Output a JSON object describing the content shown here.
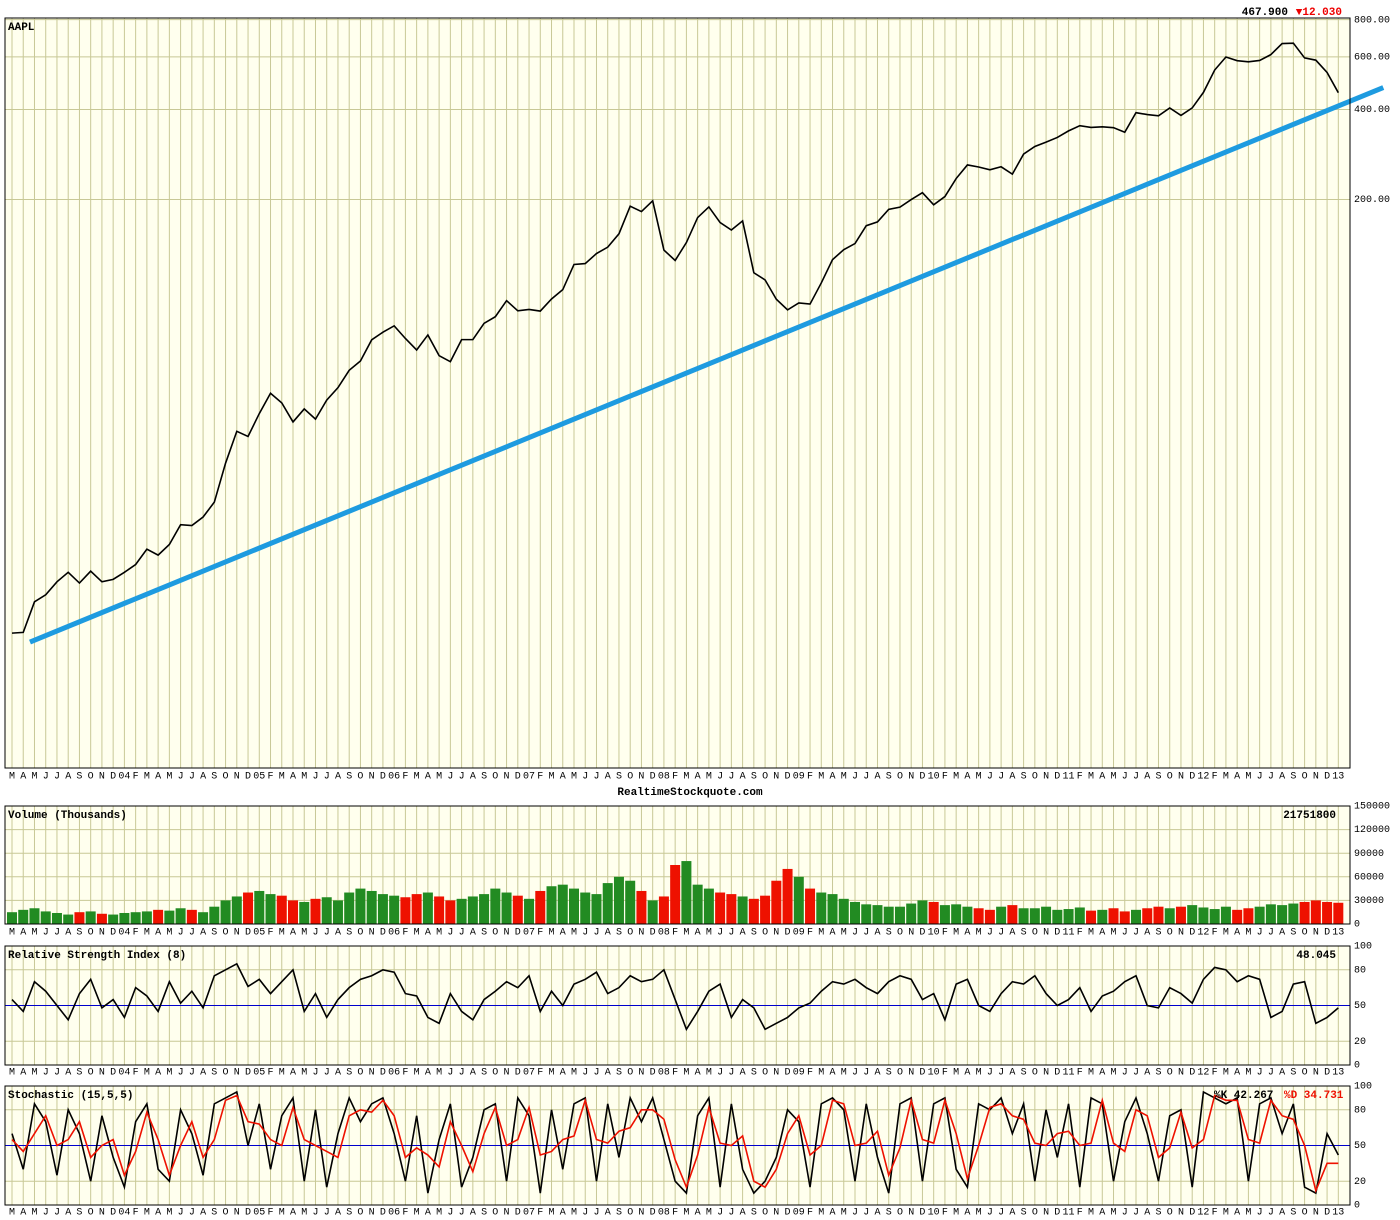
{
  "chart_data": [
    {
      "type": "line",
      "title": "AAPL",
      "last_label": "467.900",
      "change_label": "▼12.030",
      "change_color": "#ee0000",
      "footer": "RealtimeStockquote.com",
      "categories": [
        "M",
        "A",
        "M",
        "J",
        "J",
        "A",
        "S",
        "O",
        "N",
        "D",
        "04",
        "F",
        "M",
        "A",
        "M",
        "J",
        "J",
        "A",
        "S",
        "O",
        "N",
        "D",
        "05",
        "F",
        "M",
        "A",
        "M",
        "J",
        "J",
        "A",
        "S",
        "O",
        "N",
        "D",
        "06",
        "F",
        "M",
        "A",
        "M",
        "J",
        "J",
        "A",
        "S",
        "O",
        "N",
        "D",
        "07",
        "F",
        "M",
        "A",
        "M",
        "J",
        "J",
        "A",
        "S",
        "O",
        "N",
        "D",
        "08",
        "F",
        "M",
        "A",
        "M",
        "J",
        "J",
        "A",
        "S",
        "O",
        "N",
        "D",
        "09",
        "F",
        "M",
        "A",
        "M",
        "J",
        "J",
        "A",
        "S",
        "O",
        "N",
        "D",
        "10",
        "F",
        "M",
        "A",
        "M",
        "J",
        "J",
        "A",
        "S",
        "O",
        "N",
        "D",
        "11",
        "F",
        "M",
        "A",
        "M",
        "J",
        "J",
        "A",
        "S",
        "O",
        "N",
        "D",
        "12",
        "F",
        "M",
        "A",
        "M",
        "J",
        "J",
        "A",
        "S",
        "O",
        "N",
        "D",
        "13"
      ],
      "values": [
        7.07,
        7.11,
        9,
        9.5,
        10.5,
        11.3,
        10.4,
        11.4,
        10.5,
        10.7,
        11.3,
        12,
        13.5,
        12.9,
        14,
        16.3,
        16.2,
        17.3,
        19.4,
        26.2,
        33.5,
        32.2,
        38.4,
        44.9,
        41.7,
        36,
        39.8,
        36.8,
        42.6,
        46.9,
        53.6,
        57.6,
        67.8,
        71.9,
        75.5,
        68.5,
        62.7,
        70.4,
        60,
        57.3,
        67.9,
        67.9,
        77,
        81,
        91.7,
        84.8,
        85.7,
        84.6,
        92.9,
        99.8,
        121.2,
        122,
        131.8,
        138.5,
        153.5,
        189.9,
        182.2,
        198,
        135.4,
        125,
        143.5,
        174,
        188.8,
        167.4,
        158,
        169.5,
        113.7,
        107.6,
        92.7,
        85.4,
        90.1,
        89.3,
        105.1,
        125.8,
        135.8,
        142.4,
        163.4,
        168.2,
        185.4,
        188.5,
        199.9,
        210.7,
        192,
        204.6,
        235,
        261,
        256.9,
        251.5,
        257.3,
        243.1,
        283.8,
        300.9,
        311.2,
        322.6,
        339.3,
        353.2,
        348.5,
        350.1,
        347.8,
        335.7,
        390.5,
        384.8,
        381.3,
        404.8,
        382.2,
        405,
        456.5,
        542.4,
        599.6,
        583,
        577.7,
        584,
        610.8,
        665.2,
        667.1,
        595.3,
        585.3,
        532.2,
        455.5
      ],
      "color": "#000000",
      "log_scale": true,
      "ylim": [
        2.5,
        810
      ],
      "yticks": [
        {
          "value": 200,
          "label": "200.00"
        },
        {
          "value": 400,
          "label": "400.00"
        },
        {
          "value": 600,
          "label": "600.00"
        },
        {
          "value": 800,
          "label": "800.00"
        }
      ],
      "trendline": {
        "x": [
          1.6,
          122
        ],
        "values": [
          6.6,
          474
        ],
        "color": "#1e9be0"
      }
    },
    {
      "type": "bar",
      "title": "Volume (Thousands)",
      "last_label": "21751800",
      "up_color": "#228b22",
      "down_color": "#ee1100",
      "values": [
        15000,
        18000,
        20000,
        16000,
        14000,
        12000,
        15000,
        16000,
        13000,
        12000,
        14000,
        15000,
        16000,
        18000,
        17000,
        20000,
        18000,
        15000,
        22000,
        30000,
        35000,
        40000,
        42000,
        38000,
        36000,
        30000,
        28000,
        32000,
        34000,
        30000,
        40000,
        45000,
        42000,
        38000,
        36000,
        34000,
        38000,
        40000,
        35000,
        30000,
        32000,
        35000,
        38000,
        45000,
        40000,
        36000,
        32000,
        42000,
        48000,
        50000,
        45000,
        40000,
        38000,
        52000,
        60000,
        55000,
        42000,
        30000,
        35000,
        75000,
        80000,
        50000,
        45000,
        40000,
        38000,
        35000,
        32000,
        36000,
        55000,
        70000,
        60000,
        45000,
        40000,
        38000,
        32000,
        28000,
        25000,
        24000,
        22000,
        22000,
        26000,
        30000,
        28000,
        24000,
        25000,
        22000,
        20000,
        18000,
        22000,
        24000,
        20000,
        20000,
        22000,
        18000,
        19000,
        21000,
        17000,
        18000,
        20000,
        16000,
        18000,
        20000,
        22000,
        20000,
        22000,
        24000,
        21000,
        19000,
        22000,
        18000,
        20000,
        22000,
        25000,
        24000,
        26000,
        28000,
        30000,
        28000,
        27000
      ],
      "ylim": [
        0,
        150000
      ],
      "yticks": [
        0,
        30000,
        60000,
        90000,
        120000,
        150000
      ]
    },
    {
      "type": "line",
      "title": "Relative Strength Index (8)",
      "last_label": "48.045",
      "color": "#000000",
      "midline": 50,
      "midline_color": "#0000cc",
      "values": [
        55,
        45,
        70,
        62,
        50,
        38,
        60,
        72,
        48,
        55,
        40,
        65,
        58,
        45,
        70,
        52,
        62,
        48,
        75,
        80,
        85,
        66,
        72,
        60,
        70,
        80,
        45,
        60,
        40,
        55,
        65,
        72,
        75,
        80,
        78,
        60,
        58,
        40,
        35,
        60,
        45,
        38,
        55,
        62,
        70,
        65,
        75,
        45,
        62,
        50,
        68,
        72,
        78,
        60,
        65,
        75,
        70,
        72,
        80,
        55,
        30,
        45,
        62,
        68,
        40,
        55,
        48,
        30,
        35,
        40,
        48,
        52,
        62,
        70,
        68,
        72,
        65,
        60,
        70,
        75,
        72,
        55,
        60,
        38,
        68,
        72,
        50,
        45,
        60,
        70,
        68,
        75,
        60,
        50,
        55,
        65,
        45,
        58,
        62,
        70,
        75,
        50,
        48,
        65,
        60,
        52,
        72,
        82,
        80,
        70,
        75,
        72,
        40,
        45,
        68,
        70,
        35,
        40,
        48
      ],
      "ylim": [
        0,
        100
      ],
      "yticks": [
        0,
        20,
        50,
        80,
        100
      ]
    },
    {
      "type": "line",
      "title": "Stochastic (15,5,5)",
      "midline": 50,
      "midline_color": "#0000cc",
      "series": [
        {
          "name": "%K 42.267",
          "color": "#000000",
          "values": [
            60,
            30,
            85,
            70,
            25,
            80,
            60,
            20,
            75,
            40,
            15,
            70,
            85,
            30,
            20,
            80,
            60,
            25,
            85,
            90,
            95,
            50,
            85,
            30,
            75,
            90,
            20,
            80,
            15,
            60,
            90,
            70,
            85,
            90,
            60,
            20,
            75,
            10,
            55,
            85,
            15,
            40,
            80,
            85,
            20,
            90,
            75,
            10,
            80,
            30,
            85,
            90,
            20,
            85,
            40,
            90,
            70,
            90,
            55,
            20,
            10,
            75,
            90,
            15,
            85,
            30,
            10,
            20,
            40,
            80,
            70,
            15,
            85,
            90,
            80,
            20,
            85,
            40,
            10,
            85,
            90,
            20,
            85,
            90,
            30,
            15,
            85,
            80,
            90,
            60,
            85,
            20,
            80,
            40,
            85,
            15,
            90,
            85,
            20,
            70,
            90,
            60,
            20,
            75,
            80,
            15,
            95,
            90,
            85,
            90,
            20,
            85,
            90,
            60,
            85,
            15,
            10,
            60,
            42
          ]
        },
        {
          "name": "%D 34.731",
          "color": "#ee1100",
          "values": [
            55,
            45,
            60,
            75,
            50,
            55,
            70,
            40,
            50,
            55,
            25,
            45,
            78,
            55,
            25,
            50,
            70,
            40,
            55,
            88,
            92,
            70,
            68,
            55,
            50,
            82,
            55,
            50,
            45,
            40,
            75,
            80,
            78,
            88,
            75,
            40,
            48,
            42,
            32,
            70,
            50,
            28,
            60,
            82,
            50,
            55,
            82,
            42,
            45,
            55,
            58,
            88,
            55,
            52,
            62,
            65,
            80,
            80,
            72,
            38,
            15,
            42,
            82,
            52,
            50,
            58,
            20,
            15,
            30,
            60,
            75,
            42,
            50,
            88,
            85,
            50,
            52,
            62,
            25,
            48,
            88,
            55,
            52,
            88,
            60,
            22,
            50,
            82,
            85,
            75,
            72,
            52,
            50,
            60,
            62,
            50,
            52,
            88,
            52,
            45,
            80,
            75,
            40,
            48,
            78,
            48,
            55,
            92,
            88,
            88,
            55,
            52,
            88,
            75,
            72,
            50,
            12,
            35,
            35
          ]
        }
      ],
      "ylim": [
        0,
        100
      ],
      "yticks": [
        0,
        20,
        50,
        80,
        100
      ]
    }
  ]
}
